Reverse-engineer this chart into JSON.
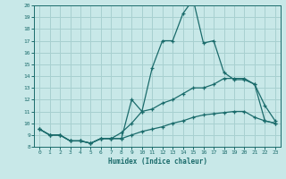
{
  "xlabel": "Humidex (Indice chaleur)",
  "background_color": "#c8e8e8",
  "grid_color": "#a8d0d0",
  "line_color": "#1a6b6b",
  "xlim": [
    -0.5,
    23.5
  ],
  "ylim": [
    8,
    20
  ],
  "yticks": [
    8,
    9,
    10,
    11,
    12,
    13,
    14,
    15,
    16,
    17,
    18,
    19,
    20
  ],
  "xticks": [
    0,
    1,
    2,
    3,
    4,
    5,
    6,
    7,
    8,
    9,
    10,
    11,
    12,
    13,
    14,
    15,
    16,
    17,
    18,
    19,
    20,
    21,
    22,
    23
  ],
  "series_bottom": {
    "x": [
      0,
      1,
      2,
      3,
      4,
      5,
      6,
      7,
      8,
      9,
      10,
      11,
      12,
      13,
      14,
      15,
      16,
      17,
      18,
      19,
      20,
      21,
      22,
      23
    ],
    "y": [
      9.5,
      9.0,
      9.0,
      8.5,
      8.5,
      8.3,
      8.7,
      8.7,
      8.7,
      9.0,
      9.3,
      9.5,
      9.7,
      10.0,
      10.2,
      10.5,
      10.7,
      10.8,
      10.9,
      11.0,
      11.0,
      10.5,
      10.2,
      10.0
    ]
  },
  "series_mid": {
    "x": [
      0,
      1,
      2,
      3,
      4,
      5,
      6,
      7,
      8,
      9,
      10,
      11,
      12,
      13,
      14,
      15,
      16,
      17,
      18,
      19,
      20,
      21,
      22,
      23
    ],
    "y": [
      9.5,
      9.0,
      9.0,
      8.5,
      8.5,
      8.3,
      8.7,
      8.7,
      9.2,
      10.0,
      11.0,
      11.2,
      11.7,
      12.0,
      12.5,
      13.0,
      13.0,
      13.3,
      13.8,
      13.8,
      13.8,
      13.3,
      11.5,
      10.2
    ]
  },
  "series_top": {
    "x": [
      0,
      1,
      2,
      3,
      4,
      5,
      6,
      7,
      8,
      9,
      10,
      11,
      12,
      13,
      14,
      15,
      16,
      17,
      18,
      19,
      20,
      21,
      22,
      23
    ],
    "y": [
      9.5,
      9.0,
      9.0,
      8.5,
      8.5,
      8.3,
      8.7,
      8.7,
      8.7,
      12.0,
      11.0,
      14.7,
      17.0,
      17.0,
      19.3,
      20.5,
      16.8,
      17.0,
      14.3,
      13.7,
      13.7,
      13.3,
      10.2,
      10.0
    ]
  }
}
